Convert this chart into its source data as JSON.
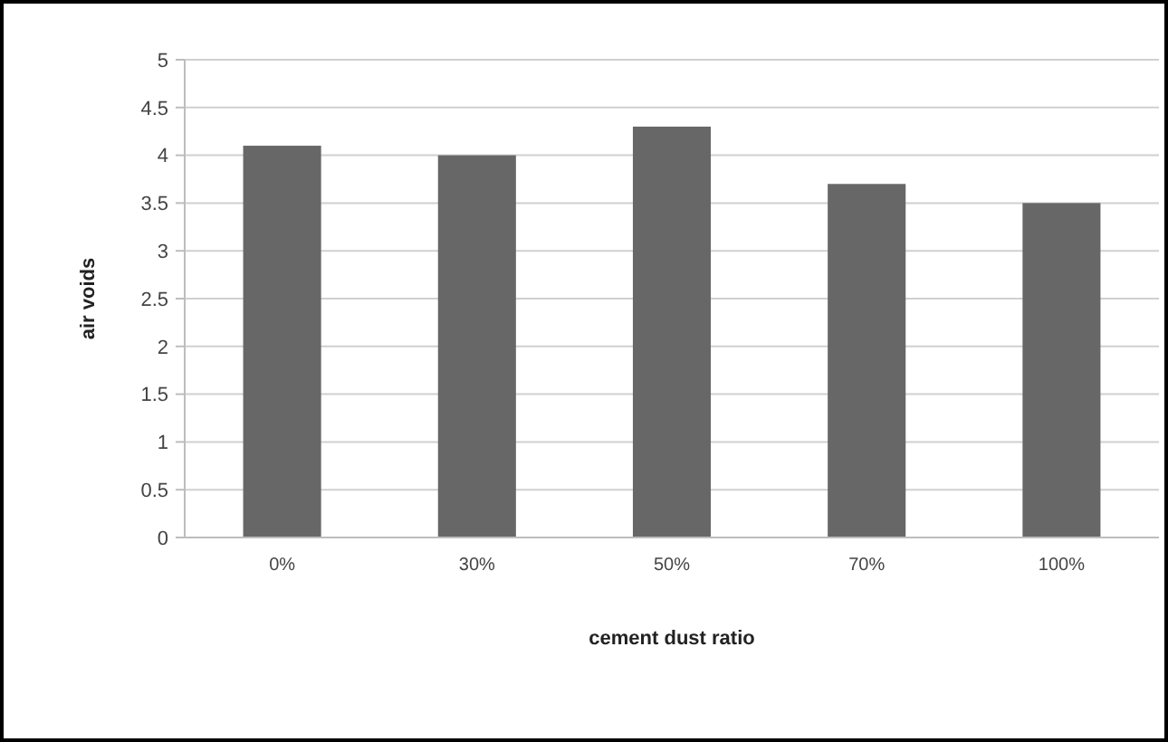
{
  "chart_data": {
    "type": "bar",
    "xlabel": "cement dust ratio",
    "ylabel": "air voids",
    "categories": [
      "0%",
      "30%",
      "50%",
      "70%",
      "100%"
    ],
    "values": [
      4.1,
      4.0,
      4.3,
      3.7,
      3.5
    ],
    "color": "#676767",
    "ylim": [
      0,
      5
    ],
    "yticks": [
      0,
      0.5,
      1,
      1.5,
      2,
      2.5,
      3,
      3.5,
      4,
      4.5,
      5
    ],
    "grid": "y"
  }
}
